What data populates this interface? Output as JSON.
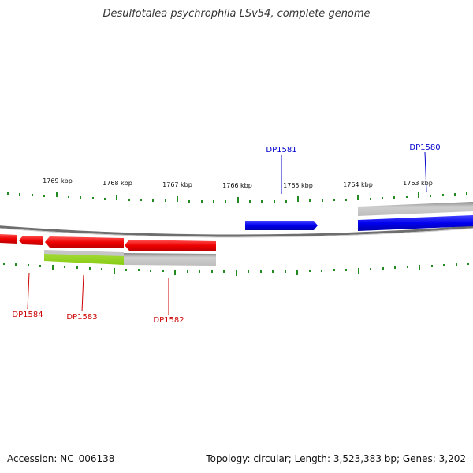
{
  "title": "Desulfotalea psychrophila LSv54, complete genome",
  "footer": {
    "accession": "Accession: NC_006138",
    "summary": "Topology: circular; Length: 3,523,383 bp; Genes: 3,202"
  },
  "kbp_labels": [
    "1769 kbp",
    "1768 kbp",
    "1767 kbp",
    "1766 kbp",
    "1765 kbp",
    "1764 kbp",
    "1763 kbp"
  ],
  "gene_labels": {
    "forward": [
      "DP1581",
      "DP1580"
    ],
    "reverse": [
      "DP1584",
      "DP1583",
      "DP1582"
    ]
  },
  "colors": {
    "forward": "#0000ee",
    "reverse": "#ee0000",
    "tick": "#228b22",
    "track": "#777777",
    "highlight": "#99dd22",
    "gray": "#bbbbbb"
  }
}
